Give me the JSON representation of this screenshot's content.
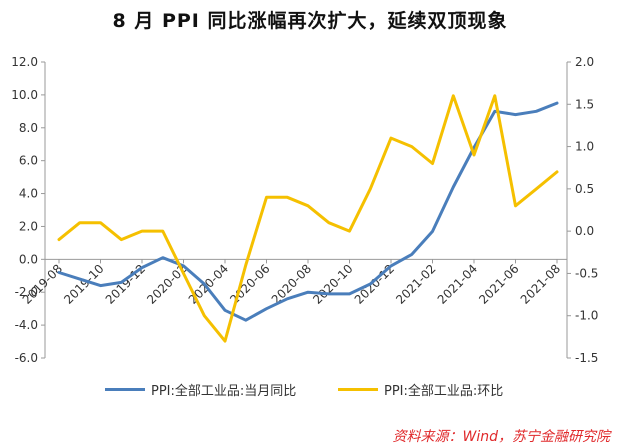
{
  "chart_data": {
    "type": "line",
    "title": "8 月 PPI 同比涨幅再次扩大，延续双顶现象",
    "x": [
      "2019-08",
      "2019-09",
      "2019-10",
      "2019-11",
      "2019-12",
      "2020-01",
      "2020-02",
      "2020-03",
      "2020-04",
      "2020-05",
      "2020-06",
      "2020-07",
      "2020-08",
      "2020-09",
      "2020-10",
      "2020-11",
      "2020-12",
      "2021-01",
      "2021-02",
      "2021-03",
      "2021-04",
      "2021-05",
      "2021-06",
      "2021-07",
      "2021-08"
    ],
    "x_tick_labels": [
      "2019-08",
      "2019-10",
      "2019-12",
      "2020-02",
      "2020-04",
      "2020-06",
      "2020-08",
      "2020-10",
      "2020-12",
      "2021-02",
      "2021-04",
      "2021-06",
      "2021-08"
    ],
    "y_left": {
      "lim": [
        -6,
        12
      ],
      "ticks": [
        "-6.0",
        "-4.0",
        "-2.0",
        "0.0",
        "2.0",
        "4.0",
        "6.0",
        "8.0",
        "10.0",
        "12.0"
      ]
    },
    "y_right": {
      "lim": [
        -1.5,
        2.0
      ],
      "ticks": [
        "-1.5",
        "-1.0",
        "-0.5",
        "0.0",
        "0.5",
        "1.0",
        "1.5",
        "2.0"
      ]
    },
    "series": [
      {
        "name": "PPI:全部工业品:当月同比",
        "axis": "left",
        "color": "#4a7ebb",
        "values": [
          -0.8,
          -1.2,
          -1.6,
          -1.4,
          -0.5,
          0.1,
          -0.4,
          -1.5,
          -3.1,
          -3.7,
          -3.0,
          -2.4,
          -2.0,
          -2.1,
          -2.1,
          -1.5,
          -0.4,
          0.3,
          1.7,
          4.4,
          6.8,
          9.0,
          8.8,
          9.0,
          9.5
        ]
      },
      {
        "name": "PPI:全部工业品:环比",
        "axis": "right",
        "color": "#f5c000",
        "values": [
          -0.1,
          0.1,
          0.1,
          -0.1,
          0.0,
          0.0,
          -0.5,
          -1.0,
          -1.3,
          -0.4,
          0.4,
          0.4,
          0.3,
          0.1,
          0.0,
          0.5,
          1.1,
          1.0,
          0.8,
          1.6,
          0.9,
          1.6,
          0.3,
          0.5,
          0.7
        ]
      }
    ],
    "grid": false,
    "legend_position": "bottom"
  },
  "source_note": "资料来源：Wind，苏宁金融研究院"
}
